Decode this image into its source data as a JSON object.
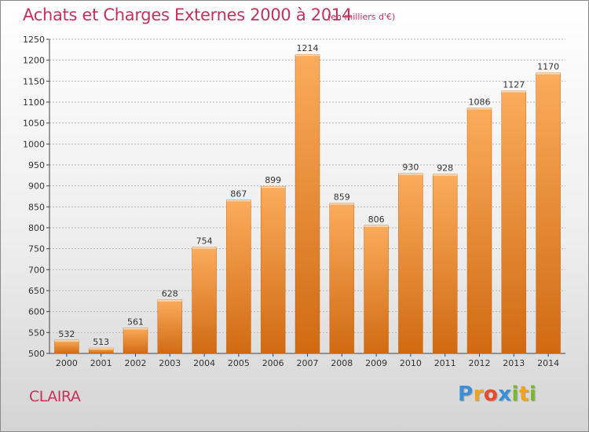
{
  "chart_data": {
    "type": "bar",
    "title": "Achats et Charges Externes 2000 à 2014",
    "subtitle": "(en milliers d'€)",
    "categories": [
      "2000",
      "2001",
      "2002",
      "2003",
      "2004",
      "2005",
      "2006",
      "2007",
      "2008",
      "2009",
      "2010",
      "2011",
      "2012",
      "2013",
      "2014"
    ],
    "values": [
      532,
      513,
      561,
      628,
      754,
      867,
      899,
      1214,
      859,
      806,
      930,
      928,
      1086,
      1127,
      1170
    ],
    "ylim": [
      500,
      1250
    ],
    "yticks": [
      500,
      550,
      600,
      650,
      700,
      750,
      800,
      850,
      900,
      950,
      1000,
      1050,
      1100,
      1150,
      1200,
      1250
    ],
    "grid": true,
    "xlabel": "",
    "ylabel": "",
    "bar_color": "#f08a2c",
    "bar_color_light": "#fbac5c",
    "bar_color_dark": "#d06a12"
  },
  "footer": {
    "commune": "CLAIRA"
  },
  "logo": {
    "text": "Proxiti",
    "letters": [
      "P",
      "r",
      "o",
      "x",
      "i",
      "t",
      "i"
    ],
    "letter_colors": [
      "#3a8fd6",
      "#f2a21a",
      "#e84a2c",
      "#3a8fd6",
      "#7ab92e",
      "#f2a21a",
      "#7ab92e"
    ]
  }
}
